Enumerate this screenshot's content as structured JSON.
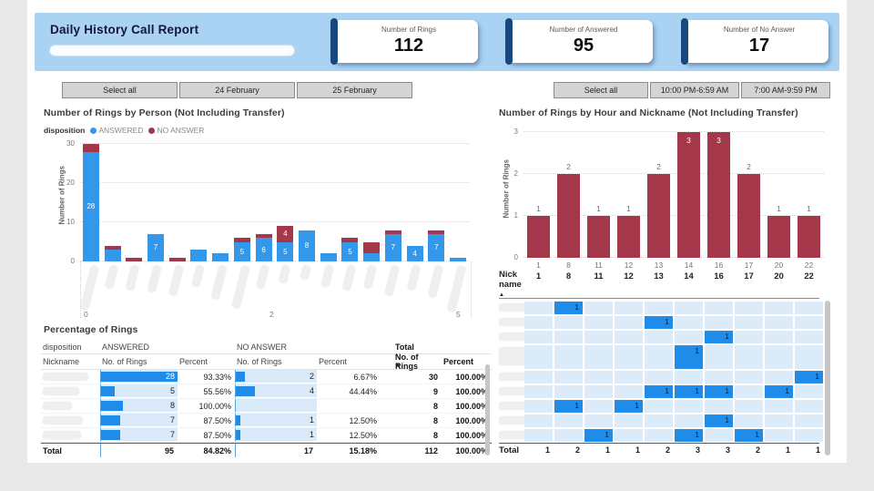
{
  "report": {
    "title": "Daily History Call Report",
    "subtitle_redacted": true
  },
  "kpis": [
    {
      "label": "Number of Rings",
      "value": "112"
    },
    {
      "label": "Number of Answered",
      "value": "95"
    },
    {
      "label": "Number of No Answer",
      "value": "17"
    }
  ],
  "filters": {
    "date_buttons": [
      {
        "label": "Select all"
      },
      {
        "label": "24 February"
      },
      {
        "label": "25 February"
      }
    ],
    "time_buttons": [
      {
        "label": "Select all"
      },
      {
        "label": "10:00 PM-6:59 AM"
      },
      {
        "label": "7:00 AM-9:59 PM"
      }
    ]
  },
  "colors": {
    "band": "#a9d2f3",
    "kpi_accent": "#17487e",
    "answered_blue": "#3498ea",
    "no_answer_red": "#a5374b",
    "matrix_highlight": "#1f8cea",
    "matrix_cell_bg": "#dcebfa",
    "databar_bg": "#d9eafa",
    "databar_fill": "#1f8cea"
  },
  "chart_data": [
    {
      "id": "rings_by_person",
      "type": "bar",
      "stacked": true,
      "title": "Number of Rings by Person (Not Including Transfer)",
      "legend_title": "disposition",
      "ylabel": "Number of Rings",
      "ylim": [
        0,
        30
      ],
      "yticks": [
        0,
        10,
        20,
        30
      ],
      "categories_redacted": true,
      "num_bars": 18,
      "series": [
        {
          "name": "ANSWERED",
          "values": [
            28,
            3,
            0,
            7,
            0,
            3,
            2,
            5,
            6,
            5,
            8,
            2,
            5,
            2,
            7,
            4,
            7,
            1
          ]
        },
        {
          "name": "NO ANSWER",
          "values": [
            2,
            1,
            1,
            0,
            1,
            0,
            0,
            1,
            1,
            4,
            0,
            0,
            1,
            3,
            1,
            0,
            1,
            0
          ]
        }
      ],
      "data_label_min_value": 4,
      "bottom_axis_labels": [
        "0",
        "2",
        "5"
      ]
    },
    {
      "id": "rings_by_hour",
      "type": "bar",
      "title": "Number of Rings by Hour and Nickname (Not Including Transfer)",
      "ylabel": "Number of Rings",
      "ylim": [
        0,
        3
      ],
      "yticks": [
        0,
        1,
        2,
        3
      ],
      "categories": [
        "1",
        "8",
        "11",
        "12",
        "13",
        "14",
        "16",
        "17",
        "20",
        "22"
      ],
      "values": [
        1,
        2,
        1,
        1,
        2,
        3,
        3,
        2,
        1,
        1
      ]
    },
    {
      "id": "rings_matrix",
      "type": "heatmap",
      "row_header": "Nick name",
      "columns": [
        "1",
        "8",
        "11",
        "12",
        "13",
        "14",
        "16",
        "17",
        "20",
        "22"
      ],
      "rows_redacted": true,
      "rows": [
        {
          "tall": false,
          "cells": [
            null,
            1,
            null,
            null,
            null,
            null,
            null,
            null,
            null,
            null
          ]
        },
        {
          "tall": false,
          "cells": [
            null,
            null,
            null,
            null,
            1,
            null,
            null,
            null,
            null,
            null
          ]
        },
        {
          "tall": false,
          "cells": [
            null,
            null,
            null,
            null,
            null,
            null,
            1,
            null,
            null,
            null
          ]
        },
        {
          "tall": true,
          "cells": [
            null,
            null,
            null,
            null,
            null,
            1,
            null,
            null,
            null,
            null
          ]
        },
        {
          "tall": false,
          "cells": [
            null,
            null,
            null,
            null,
            null,
            null,
            null,
            null,
            null,
            1
          ]
        },
        {
          "tall": false,
          "cells": [
            null,
            null,
            null,
            null,
            1,
            1,
            1,
            null,
            1,
            null
          ]
        },
        {
          "tall": false,
          "cells": [
            null,
            1,
            null,
            1,
            null,
            null,
            null,
            null,
            null,
            null
          ]
        },
        {
          "tall": false,
          "cells": [
            null,
            null,
            null,
            null,
            null,
            null,
            1,
            null,
            null,
            null
          ]
        },
        {
          "tall": false,
          "cells": [
            null,
            null,
            1,
            null,
            null,
            1,
            null,
            1,
            null,
            null
          ]
        }
      ],
      "total_label": "Total",
      "totals": [
        1,
        2,
        1,
        1,
        2,
        3,
        3,
        2,
        1,
        1
      ]
    },
    {
      "id": "percentage_table",
      "type": "table",
      "title": "Percentage of Rings",
      "group_headers": [
        "disposition",
        "ANSWERED",
        "NO ANSWER",
        "Total"
      ],
      "sub_headers": [
        "Nickname",
        "No. of Rings",
        "Percent",
        "No. of Rings",
        "Percent",
        "No. of Rings",
        "Percent"
      ],
      "rows": [
        {
          "name_redacted": true,
          "answered": 28,
          "answered_pct": "93.33%",
          "no_answer": 2,
          "no_answer_pct": "6.67%",
          "total": 30,
          "total_pct": "100.00%"
        },
        {
          "name_redacted": true,
          "answered": 5,
          "answered_pct": "55.56%",
          "no_answer": 4,
          "no_answer_pct": "44.44%",
          "total": 9,
          "total_pct": "100.00%"
        },
        {
          "name_redacted": true,
          "answered": 8,
          "answered_pct": "100.00%",
          "no_answer": null,
          "no_answer_pct": "",
          "total": 8,
          "total_pct": "100.00%"
        },
        {
          "name_redacted": true,
          "answered": 7,
          "answered_pct": "87.50%",
          "no_answer": 1,
          "no_answer_pct": "12.50%",
          "total": 8,
          "total_pct": "100.00%"
        },
        {
          "name_redacted": true,
          "answered": 7,
          "answered_pct": "87.50%",
          "no_answer": 1,
          "no_answer_pct": "12.50%",
          "total": 8,
          "total_pct": "100.00%"
        }
      ],
      "total_row": {
        "label": "Total",
        "answered": 95,
        "answered_pct": "84.82%",
        "no_answer": 17,
        "no_answer_pct": "15.18%",
        "total": 112,
        "total_pct": "100.00%"
      }
    }
  ]
}
